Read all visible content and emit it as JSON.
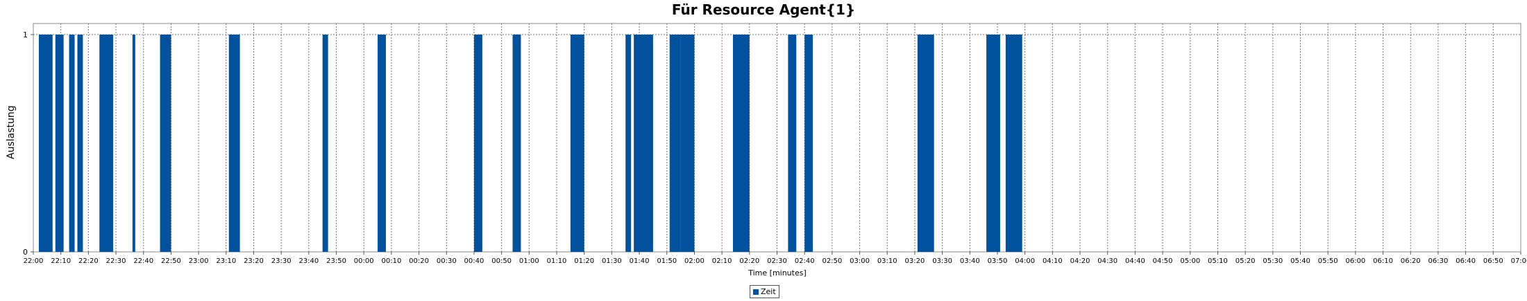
{
  "chart_data": {
    "type": "bar",
    "title": "Für Resource Agent{1}",
    "xlabel": "Time [minutes]",
    "ylabel": "Auslastung",
    "ylim": [
      0,
      1
    ],
    "y_ticks": [
      "0",
      "1"
    ],
    "x_range": [
      "22:00",
      "07:00"
    ],
    "x_ticks": [
      "22:00",
      "22:10",
      "22:20",
      "22:30",
      "22:40",
      "22:50",
      "23:00",
      "23:10",
      "23:20",
      "23:30",
      "23:40",
      "23:50",
      "00:00",
      "00:10",
      "00:20",
      "00:30",
      "00:40",
      "00:50",
      "01:00",
      "01:10",
      "01:20",
      "01:30",
      "01:40",
      "01:50",
      "02:00",
      "02:10",
      "02:20",
      "02:30",
      "02:40",
      "02:50",
      "03:00",
      "03:10",
      "03:20",
      "03:30",
      "03:40",
      "03:50",
      "04:00",
      "04:10",
      "04:20",
      "04:30",
      "04:40",
      "04:50",
      "05:00",
      "05:10",
      "05:20",
      "05:30",
      "05:40",
      "05:50",
      "06:00",
      "06:10",
      "06:20",
      "06:30",
      "06:40",
      "06:50",
      "07:00"
    ],
    "grid": true,
    "legend_position": "bottom",
    "series": [
      {
        "name": "Zeit",
        "color": "#02519c",
        "intervals": [
          {
            "start": "22:02",
            "end": "22:07",
            "value": 1
          },
          {
            "start": "22:08",
            "end": "22:11",
            "value": 1
          },
          {
            "start": "22:13",
            "end": "22:15",
            "value": 1
          },
          {
            "start": "22:16",
            "end": "22:18",
            "value": 1
          },
          {
            "start": "22:24",
            "end": "22:29",
            "value": 1
          },
          {
            "start": "22:36",
            "end": "22:37",
            "value": 1
          },
          {
            "start": "22:46",
            "end": "22:50",
            "value": 1
          },
          {
            "start": "23:11",
            "end": "23:15",
            "value": 1
          },
          {
            "start": "23:45",
            "end": "23:47",
            "value": 1
          },
          {
            "start": "00:05",
            "end": "00:08",
            "value": 1
          },
          {
            "start": "00:40",
            "end": "00:43",
            "value": 1
          },
          {
            "start": "00:54",
            "end": "00:57",
            "value": 1
          },
          {
            "start": "01:15",
            "end": "01:20",
            "value": 1
          },
          {
            "start": "01:35",
            "end": "01:37",
            "value": 1
          },
          {
            "start": "01:38",
            "end": "01:45",
            "value": 1
          },
          {
            "start": "01:51",
            "end": "01:55",
            "value": 1
          },
          {
            "start": "01:55",
            "end": "02:00",
            "value": 1
          },
          {
            "start": "02:14",
            "end": "02:20",
            "value": 1
          },
          {
            "start": "02:34",
            "end": "02:37",
            "value": 1
          },
          {
            "start": "02:40",
            "end": "02:43",
            "value": 1
          },
          {
            "start": "03:21",
            "end": "03:27",
            "value": 1
          },
          {
            "start": "03:46",
            "end": "03:51",
            "value": 1
          },
          {
            "start": "03:53",
            "end": "03:59",
            "value": 1
          }
        ]
      }
    ]
  }
}
